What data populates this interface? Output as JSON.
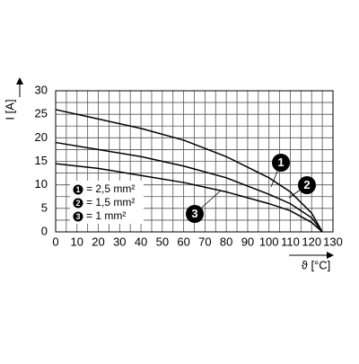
{
  "chart_data": {
    "type": "line",
    "x_label": "ϑ [°C]",
    "y_label": "I [A]",
    "x": [
      0,
      20,
      40,
      60,
      80,
      100,
      110,
      120,
      125
    ],
    "series": [
      {
        "name": "= 2,5 mm²",
        "marker": "1",
        "color": "#000000",
        "values": [
          26,
          24,
          22,
          19.5,
          16,
          11.5,
          8.5,
          4,
          0
        ]
      },
      {
        "name": "= 1,5 mm²",
        "marker": "2",
        "color": "#000000",
        "values": [
          19,
          17.5,
          16,
          14,
          11.5,
          8,
          6,
          3,
          0
        ]
      },
      {
        "name": "= 1 mm²",
        "marker": "3",
        "color": "#000000",
        "values": [
          14.5,
          13.5,
          12,
          10.5,
          8.5,
          6,
          4.5,
          2,
          0
        ]
      }
    ],
    "xlim": [
      0,
      130
    ],
    "ylim": [
      0,
      30
    ],
    "xticks": [
      0,
      10,
      20,
      30,
      40,
      50,
      60,
      70,
      80,
      90,
      100,
      110,
      120,
      130
    ],
    "yticks": [
      0,
      5,
      10,
      15,
      20,
      25,
      30
    ],
    "grid": true
  }
}
